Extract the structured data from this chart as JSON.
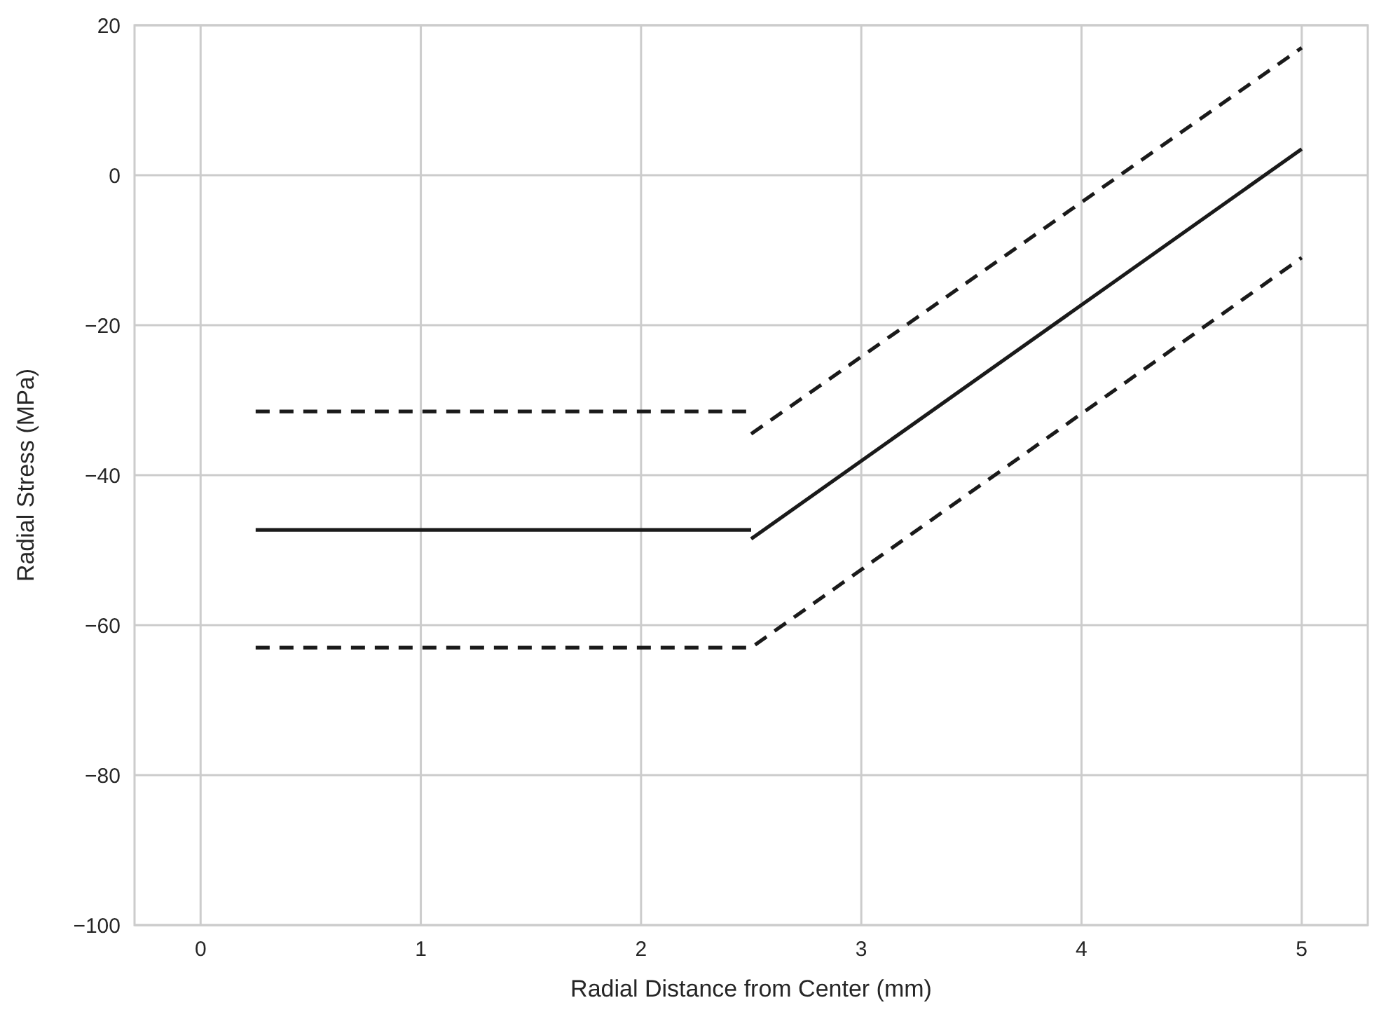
{
  "chart_data": {
    "type": "line",
    "xlabel": "Radial Distance from Center (mm)",
    "ylabel": "Radial Stress (MPa)",
    "xlim": [
      -0.3,
      5.3
    ],
    "xticks": [
      0,
      1,
      2,
      3,
      4,
      5
    ],
    "ylim": [
      -100,
      20
    ],
    "yticks": [
      {
        "value": -100,
        "label": "−100"
      },
      {
        "value": -80,
        "label": "−80"
      },
      {
        "value": -60,
        "label": "−60"
      },
      {
        "value": -40,
        "label": "−40"
      },
      {
        "value": -20,
        "label": "−20"
      },
      0,
      20
    ],
    "grid": true,
    "marker": "none",
    "series": [
      {
        "color": "#1a1a1a",
        "line_style": "solid",
        "x": [
          0.25,
          2.5
        ],
        "values": [
          -47.3,
          -47.3
        ]
      },
      {
        "color": "#1a1a1a",
        "line_style": "solid",
        "x": [
          2.5,
          5
        ],
        "values": [
          -48.5,
          3.5
        ]
      },
      {
        "color": "#1a1a1a",
        "line_style": "dashed",
        "x": [
          0.25,
          2.5
        ],
        "values": [
          -31.5,
          -31.5
        ]
      },
      {
        "color": "#1a1a1a",
        "line_style": "dashed",
        "x": [
          2.5,
          5
        ],
        "values": [
          -34.5,
          17
        ]
      },
      {
        "color": "#1a1a1a",
        "line_style": "dashed",
        "x": [
          0.25,
          2.5,
          5
        ],
        "values": [
          -63,
          -63,
          -11
        ]
      }
    ]
  }
}
